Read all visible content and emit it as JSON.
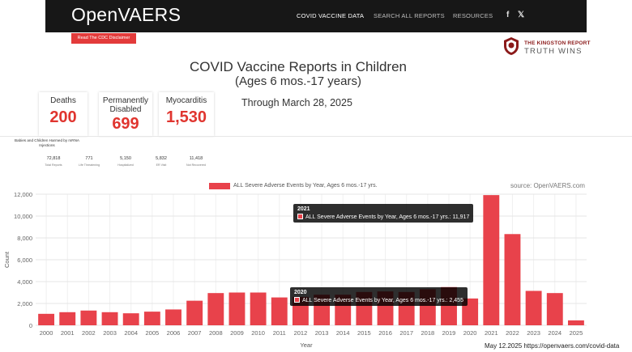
{
  "header": {
    "brand": "OpenVAERS",
    "nav": [
      "COVID VACCINE DATA",
      "SEARCH ALL REPORTS",
      "RESOURCES"
    ],
    "social": [
      "f",
      "𝕏"
    ]
  },
  "disclaimer_button": "Read The CDC Disclaimer",
  "kingston": {
    "line1": "THE KINGSTON REPORT",
    "line2": "TRUTH WINS"
  },
  "page": {
    "title": "COVID Vaccine Reports in Children",
    "subtitle": "(Ages 6 mos.-17 years)",
    "through": "Through March 28, 2025"
  },
  "stats": [
    {
      "label": "Deaths",
      "value": "200"
    },
    {
      "label": "Permanently Disabled",
      "value": "699"
    },
    {
      "label": "Myocarditis",
      "value": "1,530"
    }
  ],
  "harmed": {
    "heading": "Babies and Children Harmed by mRNA Injections",
    "items": [
      {
        "value": "72,818",
        "label": "Total Reports"
      },
      {
        "value": "771",
        "label": "Life Threatening"
      },
      {
        "value": "5,150",
        "label": "Hospitalized"
      },
      {
        "value": "5,832",
        "label": "ER Visit"
      },
      {
        "value": "11,418",
        "label": "Not Recovered"
      }
    ]
  },
  "chart_data": {
    "type": "bar",
    "legend": "ALL Severe Adverse Events by Year, Ages 6 mos.-17 yrs.",
    "source": "source: OpenVAERS.com",
    "xlabel": "Year",
    "ylabel": "Count",
    "ylim": [
      0,
      12000
    ],
    "yticks": [
      "0",
      "2,000",
      "4,000",
      "6,000",
      "8,000",
      "10,000",
      "12,000"
    ],
    "categories": [
      "2000",
      "2001",
      "2002",
      "2003",
      "2004",
      "2005",
      "2006",
      "2007",
      "2008",
      "2009",
      "2010",
      "2011",
      "2012",
      "2013",
      "2014",
      "2015",
      "2016",
      "2017",
      "2018",
      "2019",
      "2020",
      "2021",
      "2022",
      "2023",
      "2024",
      "2025"
    ],
    "values": [
      1050,
      1200,
      1350,
      1200,
      1100,
      1250,
      1450,
      2250,
      2950,
      3000,
      3000,
      2550,
      2600,
      2800,
      2800,
      3050,
      3100,
      3050,
      3300,
      3500,
      2455,
      11917,
      8350,
      3150,
      2950,
      450
    ],
    "color": "#e8424b",
    "tooltips": [
      {
        "title": "2021",
        "text": "ALL Severe Adverse Events by Year, Ages 6 mos.-17 yrs.: 11,917"
      },
      {
        "title": "2020",
        "text": "ALL Severe Adverse Events by Year, Ages 6 mos.-17 yrs.: 2,455"
      }
    ]
  },
  "footer": "May 12.2025 https://openvaers.com/covid-data"
}
